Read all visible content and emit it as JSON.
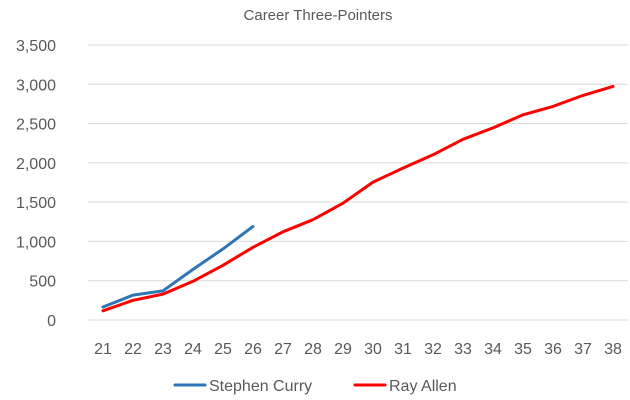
{
  "chart_data": {
    "type": "line",
    "title": "Career Three-Pointers",
    "xlabel": "",
    "ylabel": "",
    "x": [
      21,
      22,
      23,
      24,
      25,
      26,
      27,
      28,
      29,
      30,
      31,
      32,
      33,
      34,
      35,
      36,
      37,
      38
    ],
    "x_tick_labels": [
      "21",
      "22",
      "23",
      "24",
      "25",
      "26",
      "27",
      "28",
      "29",
      "30",
      "31",
      "32",
      "33",
      "34",
      "35",
      "36",
      "37",
      "38"
    ],
    "ylim": [
      0,
      3500
    ],
    "y_ticks": [
      0,
      500,
      1000,
      1500,
      2000,
      2500,
      3000,
      3500
    ],
    "y_tick_labels": [
      "0",
      "500",
      "1,000",
      "1,500",
      "2,000",
      "2,500",
      "3,000",
      "3,500"
    ],
    "grid": "horizontal",
    "legend_position": "bottom",
    "series": [
      {
        "name": "Stephen Curry",
        "color": "#2e75b6",
        "x": [
          21,
          22,
          23,
          24,
          25,
          26
        ],
        "values": [
          166,
          317,
          372,
          644,
          905,
          1191
        ]
      },
      {
        "name": "Ray Allen",
        "color": "#ff0000",
        "x": [
          21,
          22,
          23,
          24,
          25,
          26,
          27,
          28,
          29,
          30,
          31,
          32,
          33,
          34,
          35,
          36,
          37,
          38
        ],
        "values": [
          117,
          251,
          329,
          492,
          696,
          925,
          1123,
          1277,
          1487,
          1755,
          1933,
          2103,
          2300,
          2445,
          2612,
          2718,
          2858,
          2973
        ]
      }
    ]
  }
}
